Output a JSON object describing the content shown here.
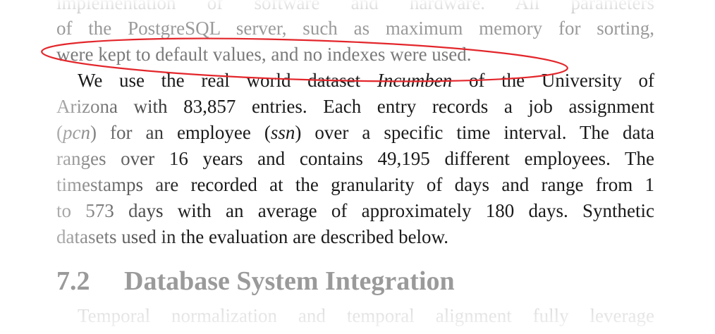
{
  "paragraph_prev": {
    "line0": "implementation of software and hardware. All parameters",
    "line1": "of the PostgreSQL server, such as maximum memory for sorting,",
    "line2": "were kept to default values, and no indexes were used."
  },
  "paragraph_main": {
    "line3_a": "We use the real world dataset ",
    "line3_italic": "Incumben",
    "line3_b": " of the University of",
    "line4": "Arizona with 83,857 entries. Each entry records a job assignment",
    "line5_a": "(",
    "line5_pcn": "pcn",
    "line5_b": ") for an employee (",
    "line5_ssn": "ssn",
    "line5_c": ") over a specific time interval. The data",
    "line6": "ranges over 16 years and contains 49,195 different employees. The",
    "line7": "timestamps are recorded at the granularity of days and range from 1",
    "line8": "to 573 days with an average of approximately 180 days. Synthetic",
    "line9": "datasets used in the evaluation are described below."
  },
  "section": {
    "number": "7.2",
    "title": "Database System Integration"
  },
  "paragraph_next": {
    "line10": "Temporal normalization and temporal alignment fully leverage"
  },
  "annotation": {
    "color": "#e3262b"
  }
}
